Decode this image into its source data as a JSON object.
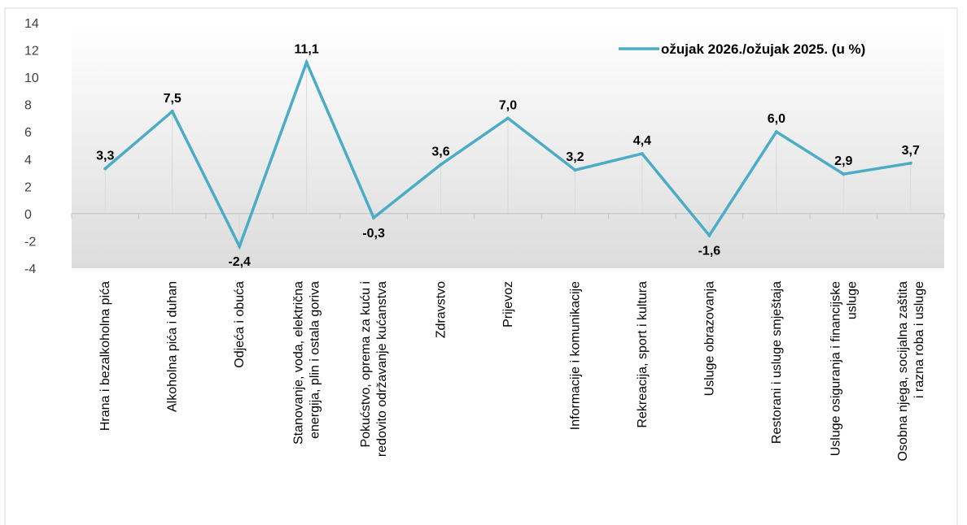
{
  "chart_data": {
    "type": "line",
    "categories": [
      [
        "Hrana i bezalkoholna pića"
      ],
      [
        "Alkoholna pića i duhan"
      ],
      [
        "Odjeća i obuća"
      ],
      [
        "Stanovanje, voda, električna",
        "energija, plin i ostala goriva"
      ],
      [
        "Pokućstvo, oprema za kuću i",
        "redovito održavanje kućanstva"
      ],
      [
        "Zdravstvo"
      ],
      [
        "Prijevoz"
      ],
      [
        "Informacije i komunikacije"
      ],
      [
        "Rekreacija, sport i kultura"
      ],
      [
        "Usluge obrazovanja"
      ],
      [
        "Restorani i usluge smještaja"
      ],
      [
        "Usluge osiguranja i financijske",
        "usluge"
      ],
      [
        "Osobna njega, socijalna zaštita",
        "i razna roba i usluge"
      ]
    ],
    "series": [
      {
        "name": "ožujak 2026./ožujak 2025. (u %)",
        "values": [
          3.3,
          7.5,
          -2.4,
          11.1,
          -0.3,
          3.6,
          7.0,
          3.2,
          4.4,
          -1.6,
          6.0,
          2.9,
          3.7
        ],
        "labels": [
          "3,3",
          "7,5",
          "-2,4",
          "11,1",
          "-0,3",
          "3,6",
          "7,0",
          "3,2",
          "4,4",
          "-1,6",
          "6,0",
          "2,9",
          "3,7"
        ]
      }
    ],
    "yticks": [
      14,
      12,
      10,
      8,
      6,
      4,
      2,
      0,
      -2,
      -4
    ],
    "ylim": [
      -4,
      14
    ],
    "grid": "vertical-drop-lines",
    "legend_position": "top-right",
    "colors": {
      "series": "#4BACC6",
      "plot_gradient_top": "#FFFFFF",
      "plot_gradient_bottom": "#DCDCDC",
      "axis": "#BFBFBF",
      "drop_line": "#D9D9D9",
      "frame": "#D9D9D9"
    }
  }
}
